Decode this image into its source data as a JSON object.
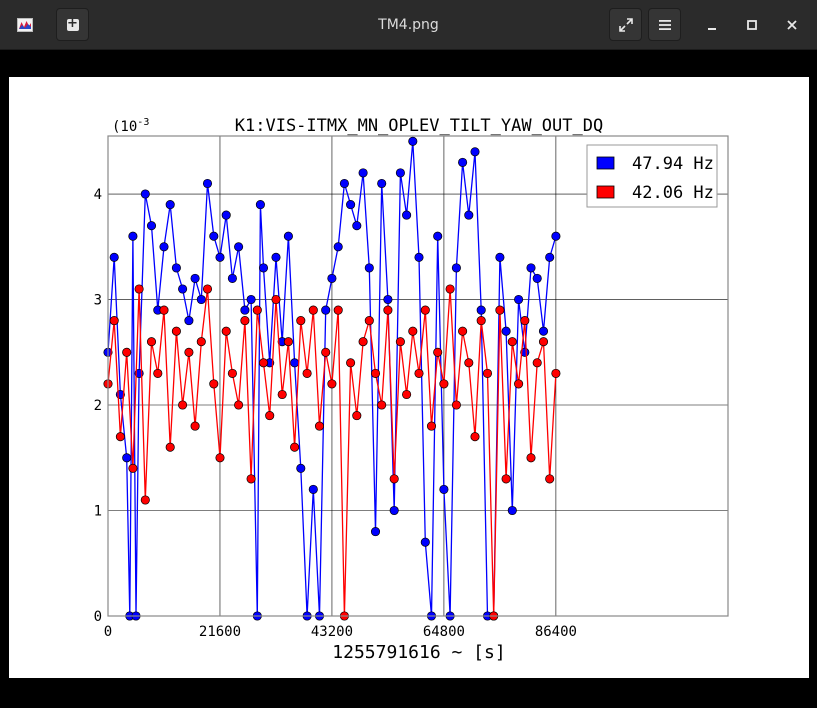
{
  "window": {
    "title": "TM4.png",
    "new_tab_glyph": "+",
    "icons": [
      "app-icon",
      "new-tab-icon",
      "fullscreen-icon",
      "menu-icon",
      "minimize-icon",
      "maximize-icon",
      "close-icon"
    ]
  },
  "chart_data": {
    "type": "scatter",
    "title": "K1:VIS-ITMX_MN_OPLEV_TILT_YAW_OUT_DQ",
    "xlabel": "1255791616 ~ [s]",
    "ylabel": "",
    "y_scale_label": "(10",
    "y_scale_exp": "-3",
    "xlim": [
      0,
      119600
    ],
    "ylim": [
      0,
      4.55
    ],
    "x_ticks": [
      0,
      21600,
      43200,
      64800,
      86400
    ],
    "x_tick_labels": [
      "0",
      "21600",
      "43200",
      "64800",
      "86400"
    ],
    "y_ticks": [
      0,
      1,
      2,
      3,
      4
    ],
    "y_tick_labels": [
      "0",
      "1",
      "2",
      "3",
      "4"
    ],
    "grid": true,
    "legend_position": "top-right",
    "series": [
      {
        "name": "47.94 Hz",
        "color": "#0000ff",
        "x": [
          0,
          1200,
          2400,
          3600,
          4200,
          4800,
          5400,
          6000,
          7200,
          8400,
          9600,
          10800,
          12000,
          13200,
          14400,
          15600,
          16800,
          18000,
          19200,
          20400,
          21600,
          22800,
          24000,
          25200,
          26400,
          27600,
          28800,
          29400,
          30000,
          31200,
          32400,
          33600,
          34800,
          36000,
          37200,
          38400,
          39600,
          40800,
          42000,
          43200,
          44400,
          45600,
          46800,
          48000,
          49200,
          50400,
          51600,
          52800,
          54000,
          55200,
          56400,
          57600,
          58800,
          60000,
          61200,
          62400,
          63600,
          64800,
          66000,
          67200,
          68400,
          69600,
          70800,
          72000,
          73200,
          74400,
          75600,
          76800,
          78000,
          79200,
          80400,
          81600,
          82800,
          84000,
          85200,
          86400
        ],
        "y": [
          2.5,
          3.4,
          2.1,
          1.5,
          0.0,
          3.6,
          0.0,
          2.3,
          4.0,
          3.7,
          2.9,
          3.5,
          3.9,
          3.3,
          3.1,
          2.8,
          3.2,
          3.0,
          4.1,
          3.6,
          3.4,
          3.8,
          3.2,
          3.5,
          2.9,
          3.0,
          0.0,
          3.9,
          3.3,
          2.4,
          3.4,
          2.6,
          3.6,
          2.4,
          1.4,
          0.0,
          1.2,
          0.0,
          2.9,
          3.2,
          3.5,
          4.1,
          3.9,
          3.7,
          4.2,
          3.3,
          0.8,
          4.1,
          3.0,
          1.0,
          4.2,
          3.8,
          4.5,
          3.4,
          0.7,
          0.0,
          3.6,
          1.2,
          0.0,
          3.3,
          4.3,
          3.8,
          4.4,
          2.9,
          0.0,
          0.0,
          3.4,
          2.7,
          1.0,
          3.0,
          2.5,
          3.3,
          3.2,
          2.7,
          3.4,
          3.6
        ]
      },
      {
        "name": "42.06 Hz",
        "color": "#ff0000",
        "x": [
          0,
          1200,
          2400,
          3600,
          4800,
          6000,
          7200,
          8400,
          9600,
          10800,
          12000,
          13200,
          14400,
          15600,
          16800,
          18000,
          19200,
          20400,
          21600,
          22800,
          24000,
          25200,
          26400,
          27600,
          28800,
          30000,
          31200,
          32400,
          33600,
          34800,
          36000,
          37200,
          38400,
          39600,
          40800,
          42000,
          43200,
          44400,
          45600,
          46800,
          48000,
          49200,
          50400,
          51600,
          52800,
          54000,
          55200,
          56400,
          57600,
          58800,
          60000,
          61200,
          62400,
          63600,
          64800,
          66000,
          67200,
          68400,
          69600,
          70800,
          72000,
          73200,
          74400,
          75600,
          76800,
          78000,
          79200,
          80400,
          81600,
          82800,
          84000,
          85200,
          86400
        ],
        "y": [
          2.2,
          2.8,
          1.7,
          2.5,
          1.4,
          3.1,
          1.1,
          2.6,
          2.3,
          2.9,
          1.6,
          2.7,
          2.0,
          2.5,
          1.8,
          2.6,
          3.1,
          2.2,
          1.5,
          2.7,
          2.3,
          2.0,
          2.8,
          1.3,
          2.9,
          2.4,
          1.9,
          3.0,
          2.1,
          2.6,
          1.6,
          2.8,
          2.3,
          2.9,
          1.8,
          2.5,
          2.2,
          2.9,
          0.0,
          2.4,
          1.9,
          2.6,
          2.8,
          2.3,
          2.0,
          2.9,
          1.3,
          2.6,
          2.1,
          2.7,
          2.3,
          2.9,
          1.8,
          2.5,
          2.2,
          3.1,
          2.0,
          2.7,
          2.4,
          1.7,
          2.8,
          2.3,
          0.0,
          2.9,
          1.3,
          2.6,
          2.2,
          2.8,
          1.5,
          2.4,
          2.6,
          1.3,
          2.3
        ]
      }
    ]
  }
}
